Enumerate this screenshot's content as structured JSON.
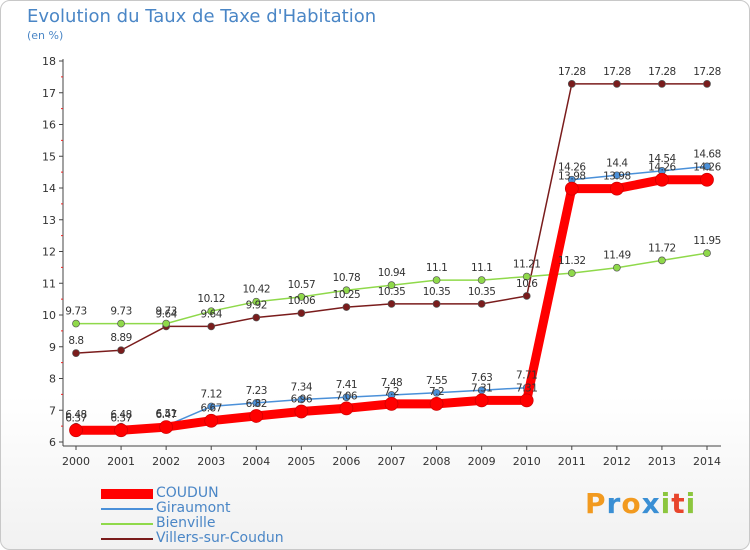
{
  "title": "Evolution du Taux de Taxe d'Habitation",
  "subtitle": "(en %)",
  "logo": [
    "P",
    "r",
    "o",
    "x",
    "i",
    "t",
    "i"
  ],
  "logo_colors": [
    "#f29a1f",
    "#3a8fd4",
    "#f29a1f",
    "#3a8fd4",
    "#8cc63e",
    "#e8452c",
    "#8cc63e"
  ],
  "chart_data": {
    "type": "line",
    "title": "Evolution du Taux de Taxe d'Habitation",
    "ylabel": "(en %)",
    "x": [
      "2000",
      "2001",
      "2002",
      "2003",
      "2004",
      "2005",
      "2006",
      "2007",
      "2008",
      "2009",
      "2010",
      "2011",
      "2012",
      "2013",
      "2014"
    ],
    "ylim": [
      6,
      18
    ],
    "yticks": [
      "6",
      "7",
      "8",
      "9",
      "10",
      "11",
      "12",
      "13",
      "14",
      "15",
      "16",
      "17",
      "18"
    ],
    "grid": false,
    "legend_position": "bottom-left",
    "series": [
      {
        "name": "COUDUN",
        "color": "#ff0000",
        "values": [
          6.37,
          6.37,
          6.47,
          6.67,
          6.82,
          6.96,
          7.06,
          7.2,
          7.2,
          7.31,
          7.31,
          13.98,
          13.98,
          14.26,
          14.26
        ],
        "labels": [
          "6.37",
          "6.37",
          "6.47",
          "6.67",
          "6.82",
          "6.96",
          "7.06",
          "7.2",
          "7.2",
          "7.31",
          "7.31",
          "13.98",
          "13.98",
          "14.26",
          "14.26"
        ]
      },
      {
        "name": "Giraumont",
        "color": "#4a90d9",
        "values": [
          6.48,
          6.48,
          6.51,
          7.12,
          7.23,
          7.34,
          7.41,
          7.48,
          7.55,
          7.63,
          7.71,
          14.26,
          14.4,
          14.54,
          14.68
        ],
        "labels": [
          "6.48",
          "6.48",
          "6.51",
          "7.12",
          "7.23",
          "7.34",
          "7.41",
          "7.48",
          "7.55",
          "7.63",
          "7.71",
          "14.26",
          "14.4",
          "14.54",
          "14.68"
        ]
      },
      {
        "name": "Bienville",
        "color": "#8fd94a",
        "values": [
          9.73,
          9.73,
          9.73,
          10.12,
          10.42,
          10.57,
          10.78,
          10.94,
          11.1,
          11.1,
          11.21,
          11.32,
          11.49,
          11.72,
          11.95
        ],
        "labels": [
          "9.73",
          "9.73",
          "9.73",
          "10.12",
          "10.42",
          "10.57",
          "10.78",
          "10.94",
          "11.1",
          "11.1",
          "11.21",
          "11.32",
          "11.49",
          "11.72",
          "11.95"
        ]
      },
      {
        "name": "Villers-sur-Coudun",
        "color": "#7a1c1c",
        "values": [
          8.8,
          8.89,
          9.64,
          9.64,
          9.92,
          10.06,
          10.25,
          10.35,
          10.35,
          10.35,
          10.6,
          17.28,
          17.28,
          17.28,
          17.28
        ],
        "labels": [
          "8.8",
          "8.89",
          "9.64",
          "9.64",
          "9.92",
          "10.06",
          "10.25",
          "10.35",
          "10.35",
          "10.35",
          "10.6",
          "17.28",
          "17.28",
          "17.28",
          "17.28"
        ]
      }
    ]
  }
}
